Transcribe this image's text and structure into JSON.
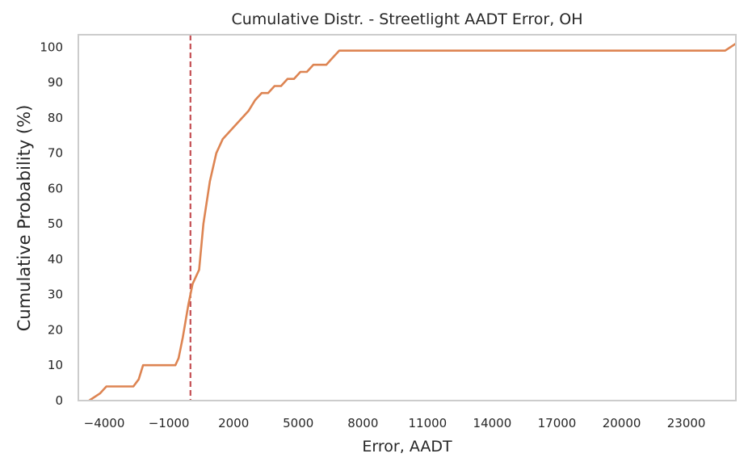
{
  "chart_data": {
    "type": "line",
    "title": "Cumulative Distr. - Streetlight AADT Error, OH",
    "xlabel": "Error, AADT",
    "ylabel": "Cumulative Probability (%)",
    "xlim": [
      -5200,
      25300
    ],
    "ylim": [
      0,
      103.5
    ],
    "x_ticks": [
      -4000,
      -1000,
      2000,
      5000,
      8000,
      11000,
      14000,
      17000,
      20000,
      23000
    ],
    "x_tick_labels": [
      "−4000",
      "−1000",
      "2000",
      "5000",
      "8000",
      "11000",
      "14000",
      "17000",
      "20000",
      "23000"
    ],
    "y_ticks": [
      0,
      10,
      20,
      30,
      40,
      50,
      60,
      70,
      80,
      90,
      100
    ],
    "y_tick_labels": [
      "0",
      "10",
      "20",
      "30",
      "40",
      "50",
      "60",
      "70",
      "80",
      "90",
      "100"
    ],
    "grid": false,
    "reference_line": {
      "axis": "x",
      "value": 0,
      "style": "dashed",
      "color": "#c44e52"
    },
    "series": [
      {
        "color": "#dd8452",
        "x": [
          -4700,
          -4200,
          -3900,
          -3600,
          -3300,
          -2900,
          -2650,
          -2400,
          -2200,
          -1900,
          -1600,
          -1300,
          -1000,
          -700,
          -550,
          -350,
          -100,
          100,
          400,
          600,
          900,
          1200,
          1500,
          1800,
          2100,
          2400,
          2700,
          3000,
          3300,
          3600,
          3900,
          4200,
          4500,
          4800,
          5100,
          5400,
          5700,
          6000,
          6300,
          6600,
          6900,
          7200,
          7500,
          7800,
          8100,
          8500,
          9000,
          24800,
          25300
        ],
        "y": [
          0,
          2,
          4,
          4,
          4,
          4,
          4,
          6,
          10,
          10,
          10,
          10,
          10,
          10,
          12,
          18,
          27,
          33,
          37,
          50,
          62,
          70,
          74,
          76,
          78,
          80,
          82,
          85,
          87,
          87,
          89,
          89,
          91,
          91,
          93,
          93,
          95,
          95,
          95,
          97,
          99,
          99,
          99,
          99,
          99,
          99,
          99,
          99,
          101
        ]
      }
    ]
  }
}
